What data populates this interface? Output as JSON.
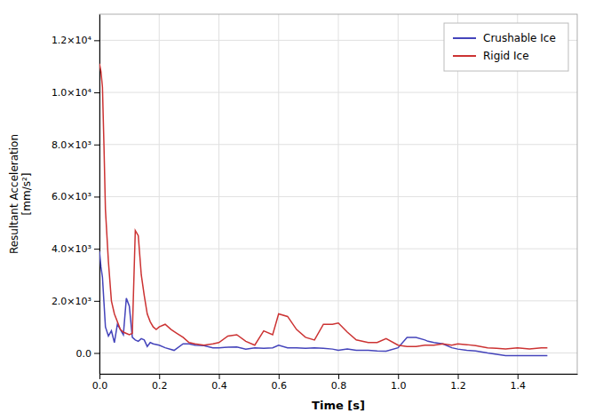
{
  "chart_data": {
    "type": "line",
    "xlabel": "Time [s]",
    "ylabel": "Resultant Acceleration\n[mm/s²]",
    "xlim": [
      0,
      1.6
    ],
    "ylim": [
      -800,
      13000
    ],
    "xticks": [
      {
        "value": 0.0,
        "label": "0.0"
      },
      0.2,
      0.4,
      0.6,
      0.8,
      {
        "value": 1.0,
        "label": "1.0"
      },
      1.2,
      1.4
    ],
    "yticks": [
      {
        "value": 0,
        "label": "0.0"
      },
      {
        "value": 2000,
        "label": "2.0×10³"
      },
      {
        "value": 4000,
        "label": "4.0×10³"
      },
      {
        "value": 6000,
        "label": "6.0×10³"
      },
      {
        "value": 8000,
        "label": "8.0×10³"
      },
      {
        "value": 10000,
        "label": "1.0×10⁴"
      },
      {
        "value": 12000,
        "label": "1.2×10⁴"
      }
    ],
    "grid": true,
    "legend": "upper right",
    "series": [
      {
        "name": "Crushable Ice",
        "color": "#4444bb",
        "x": [
          0.0,
          0.005,
          0.01,
          0.02,
          0.03,
          0.04,
          0.05,
          0.06,
          0.07,
          0.08,
          0.09,
          0.1,
          0.11,
          0.12,
          0.13,
          0.14,
          0.15,
          0.16,
          0.17,
          0.18,
          0.2,
          0.22,
          0.25,
          0.28,
          0.3,
          0.32,
          0.35,
          0.38,
          0.4,
          0.43,
          0.46,
          0.49,
          0.52,
          0.55,
          0.58,
          0.6,
          0.63,
          0.66,
          0.69,
          0.72,
          0.75,
          0.78,
          0.8,
          0.83,
          0.86,
          0.9,
          0.93,
          0.96,
          1.0,
          1.03,
          1.06,
          1.09,
          1.1,
          1.12,
          1.15,
          1.18,
          1.2,
          1.23,
          1.26,
          1.3,
          1.33,
          1.36,
          1.39,
          1.42,
          1.45,
          1.48,
          1.5
        ],
        "values": [
          3900,
          3300,
          2900,
          1000,
          650,
          850,
          400,
          1100,
          900,
          700,
          2100,
          1800,
          600,
          500,
          450,
          550,
          500,
          250,
          400,
          350,
          300,
          200,
          100,
          350,
          350,
          300,
          280,
          200,
          200,
          220,
          230,
          150,
          200,
          180,
          200,
          300,
          200,
          200,
          180,
          200,
          180,
          150,
          100,
          150,
          100,
          100,
          80,
          70,
          200,
          600,
          600,
          500,
          450,
          400,
          350,
          200,
          150,
          100,
          80,
          0,
          -50,
          -100,
          -100,
          -100,
          -100,
          -100,
          -100
        ]
      },
      {
        "name": "Rigid Ice",
        "color": "#cc3333",
        "x": [
          0.0,
          0.005,
          0.01,
          0.015,
          0.02,
          0.03,
          0.04,
          0.05,
          0.06,
          0.07,
          0.08,
          0.09,
          0.1,
          0.11,
          0.12,
          0.13,
          0.14,
          0.15,
          0.16,
          0.17,
          0.18,
          0.19,
          0.2,
          0.22,
          0.24,
          0.26,
          0.28,
          0.3,
          0.32,
          0.35,
          0.38,
          0.4,
          0.43,
          0.46,
          0.49,
          0.52,
          0.55,
          0.58,
          0.6,
          0.63,
          0.66,
          0.69,
          0.72,
          0.75,
          0.78,
          0.8,
          0.83,
          0.86,
          0.9,
          0.93,
          0.96,
          1.0,
          1.03,
          1.06,
          1.09,
          1.12,
          1.15,
          1.18,
          1.2,
          1.23,
          1.26,
          1.3,
          1.33,
          1.36,
          1.4,
          1.44,
          1.48,
          1.5
        ],
        "values": [
          11100,
          10800,
          10200,
          8000,
          5500,
          3500,
          2000,
          1500,
          1200,
          900,
          800,
          750,
          700,
          750,
          4700,
          4500,
          3000,
          2200,
          1500,
          1200,
          1000,
          900,
          1000,
          1100,
          900,
          750,
          600,
          400,
          350,
          300,
          350,
          400,
          650,
          700,
          450,
          300,
          850,
          700,
          1500,
          1400,
          900,
          600,
          500,
          1100,
          1100,
          1150,
          800,
          500,
          400,
          400,
          550,
          300,
          250,
          250,
          300,
          300,
          350,
          300,
          350,
          320,
          280,
          200,
          180,
          150,
          200,
          150,
          200,
          200
        ]
      }
    ]
  }
}
